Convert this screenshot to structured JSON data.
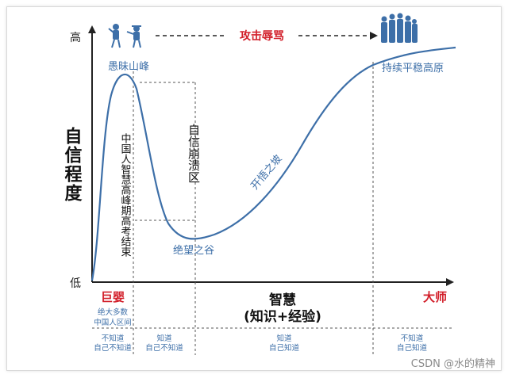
{
  "y_axis": {
    "title": "自信程度",
    "high": "高",
    "low": "低"
  },
  "x_axis": {
    "title_line1": "智慧",
    "title_line2": "(知识+经验)"
  },
  "labels": {
    "peak": "愚昧山峰",
    "attack": "攻击辱骂",
    "plateau": "持续平稳高原",
    "valley": "绝望之谷",
    "slope": "开悟之坡",
    "crash": "自信崩溃区",
    "gaokao": "中国人智慧高峰期高考结束"
  },
  "stages": {
    "giant_baby": "巨婴",
    "giant_baby_note_1": "绝大多数",
    "giant_baby_note_2": "中国人区间",
    "master": "大师"
  },
  "knowledge_table": [
    {
      "line1": "不知道",
      "line2": "自己不知道"
    },
    {
      "line1": "知道",
      "line2": "自己不知道"
    },
    {
      "line1": "知道",
      "line2": "自己知道"
    },
    {
      "line1": "不知道",
      "line2": "自己知道"
    }
  ],
  "colors": {
    "curve": "#3d6fa8",
    "red": "#d21f2a",
    "blue_text": "#3d6fa8",
    "axis": "#222222"
  },
  "icons": [
    "confused-people-icon",
    "crowd-icon"
  ],
  "watermark": "CSDN @水的精神"
}
